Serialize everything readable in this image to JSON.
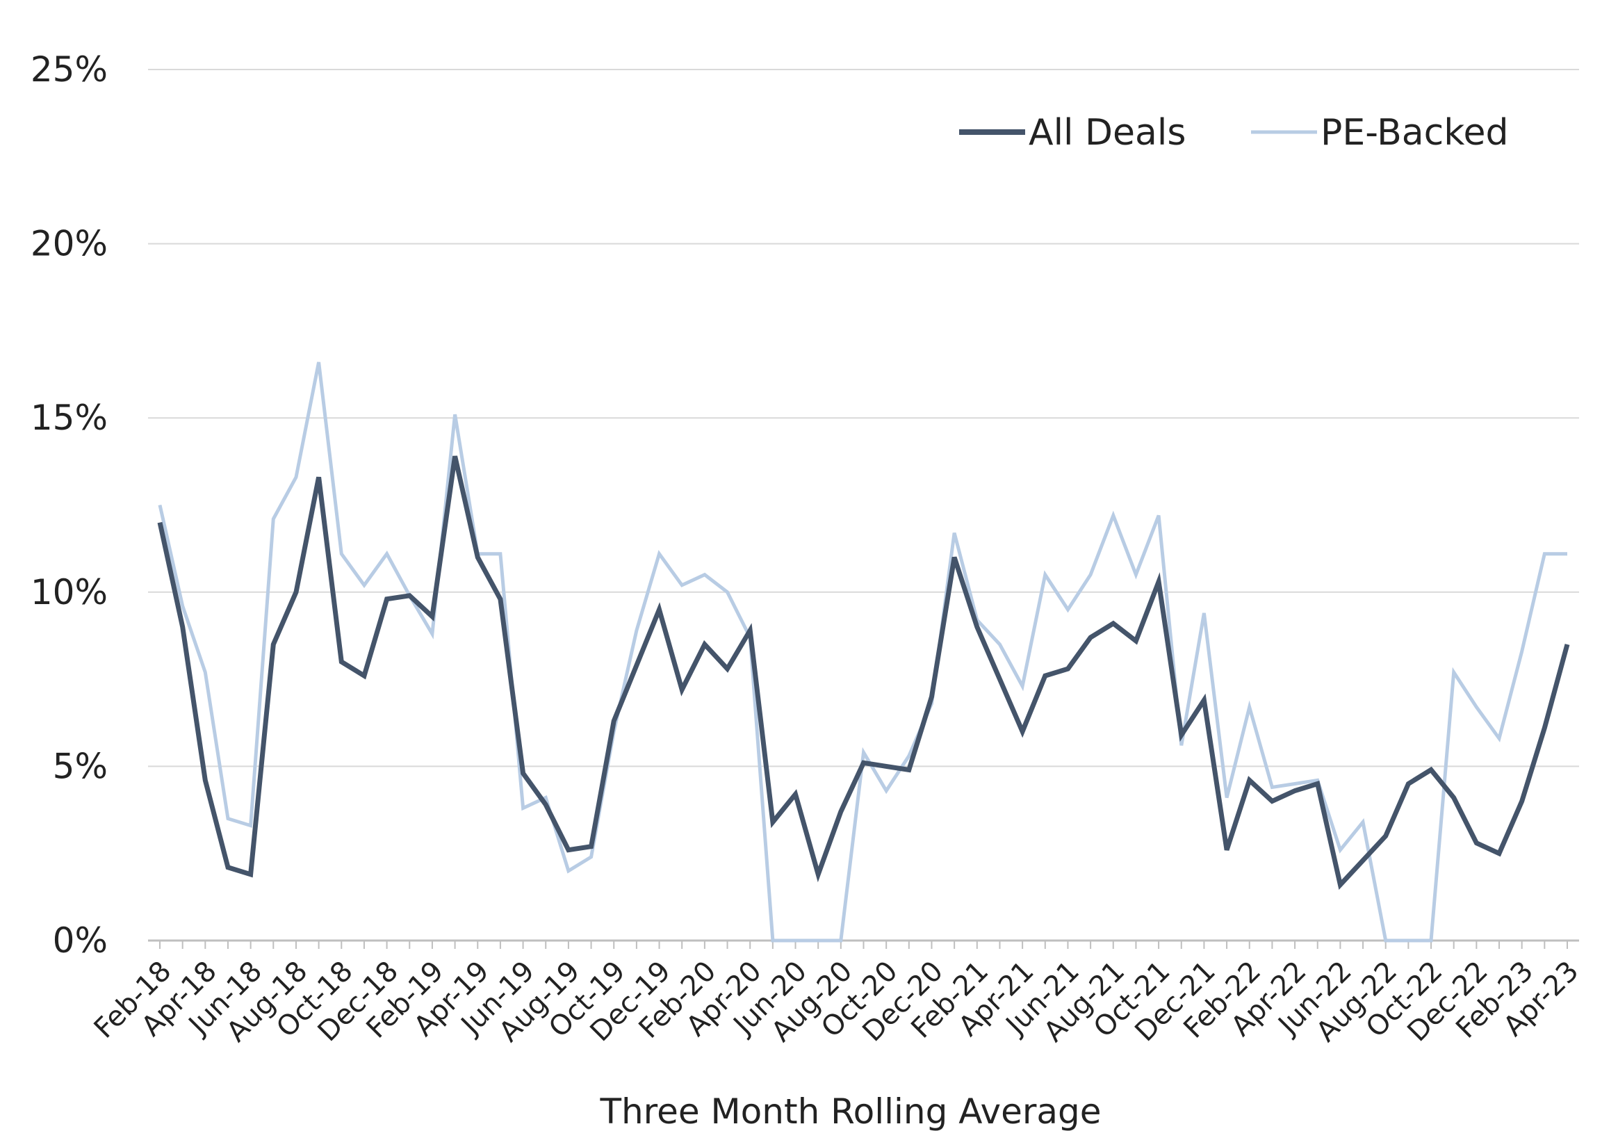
{
  "chart_data": {
    "type": "line",
    "xlabel": "Three Month Rolling Average",
    "ylabel": "",
    "ylim": [
      0,
      25
    ],
    "yticks": [
      "0%",
      "5%",
      "10%",
      "15%",
      "20%",
      "25%"
    ],
    "ytick_values": [
      0,
      5,
      10,
      15,
      20,
      25
    ],
    "grid": "horizontal",
    "legend_position": "top-right",
    "x": [
      "Feb-18",
      "Mar-18",
      "Apr-18",
      "May-18",
      "Jun-18",
      "Jul-18",
      "Aug-18",
      "Sep-18",
      "Oct-18",
      "Nov-18",
      "Dec-18",
      "Jan-19",
      "Feb-19",
      "Mar-19",
      "Apr-19",
      "May-19",
      "Jun-19",
      "Jul-19",
      "Aug-19",
      "Sep-19",
      "Oct-19",
      "Nov-19",
      "Dec-19",
      "Jan-20",
      "Feb-20",
      "Mar-20",
      "Apr-20",
      "May-20",
      "Jun-20",
      "Jul-20",
      "Aug-20",
      "Sep-20",
      "Oct-20",
      "Nov-20",
      "Dec-20",
      "Jan-21",
      "Feb-21",
      "Mar-21",
      "Apr-21",
      "May-21",
      "Jun-21",
      "Jul-21",
      "Aug-21",
      "Sep-21",
      "Oct-21",
      "Nov-21",
      "Dec-21",
      "Jan-22",
      "Feb-22",
      "Mar-22",
      "Apr-22",
      "May-22",
      "Jun-22",
      "Jul-22",
      "Aug-22",
      "Sep-22",
      "Oct-22",
      "Nov-22",
      "Dec-22",
      "Jan-23",
      "Feb-23",
      "Mar-23",
      "Apr-23"
    ],
    "xtick_labels": [
      "Feb-18",
      "Apr-18",
      "Jun-18",
      "Aug-18",
      "Oct-18",
      "Dec-18",
      "Feb-19",
      "Apr-19",
      "Jun-19",
      "Aug-19",
      "Oct-19",
      "Dec-19",
      "Feb-20",
      "Apr-20",
      "Jun-20",
      "Aug-20",
      "Oct-20",
      "Dec-20",
      "Feb-21",
      "Apr-21",
      "Jun-21",
      "Aug-21",
      "Oct-21",
      "Dec-21",
      "Feb-22",
      "Apr-22",
      "Jun-22",
      "Aug-22",
      "Oct-22",
      "Dec-22",
      "Feb-23",
      "Apr-23"
    ],
    "series": [
      {
        "name": "All Deals",
        "color": "#44546a",
        "values": [
          12.0,
          9.0,
          4.6,
          2.1,
          1.9,
          8.5,
          10.0,
          13.3,
          8.0,
          7.6,
          9.8,
          9.9,
          9.3,
          13.9,
          11.0,
          9.8,
          4.8,
          3.9,
          2.6,
          2.7,
          6.3,
          7.9,
          9.5,
          7.2,
          8.5,
          7.8,
          8.9,
          3.4,
          4.2,
          1.9,
          3.7,
          5.1,
          5.0,
          4.9,
          7.0,
          11.0,
          9.0,
          7.5,
          6.0,
          7.6,
          7.8,
          8.7,
          9.1,
          8.6,
          10.3,
          5.9,
          6.9,
          2.6,
          4.6,
          4.0,
          4.3,
          4.5,
          1.6,
          2.3,
          3.0,
          4.5,
          4.9,
          4.1,
          2.8,
          2.5,
          4.0,
          6.1,
          8.5
        ]
      },
      {
        "name": "PE-Backed",
        "color": "#b8cce4",
        "values": [
          12.5,
          9.6,
          7.7,
          3.5,
          3.3,
          12.1,
          13.3,
          16.6,
          11.1,
          10.2,
          11.1,
          9.9,
          8.8,
          15.1,
          11.1,
          11.1,
          3.8,
          4.1,
          2.0,
          2.4,
          6.0,
          8.9,
          11.1,
          10.2,
          10.5,
          10.0,
          8.7,
          0.0,
          0.0,
          0.0,
          0.0,
          5.4,
          4.3,
          5.3,
          6.8,
          11.7,
          9.2,
          8.5,
          7.3,
          10.5,
          9.5,
          10.5,
          12.2,
          10.5,
          12.2,
          5.6,
          9.4,
          4.1,
          6.7,
          4.4,
          4.5,
          4.6,
          2.6,
          3.4,
          0.0,
          0.0,
          0.0,
          7.7,
          6.7,
          5.8,
          8.3,
          11.1,
          11.1
        ]
      }
    ]
  }
}
